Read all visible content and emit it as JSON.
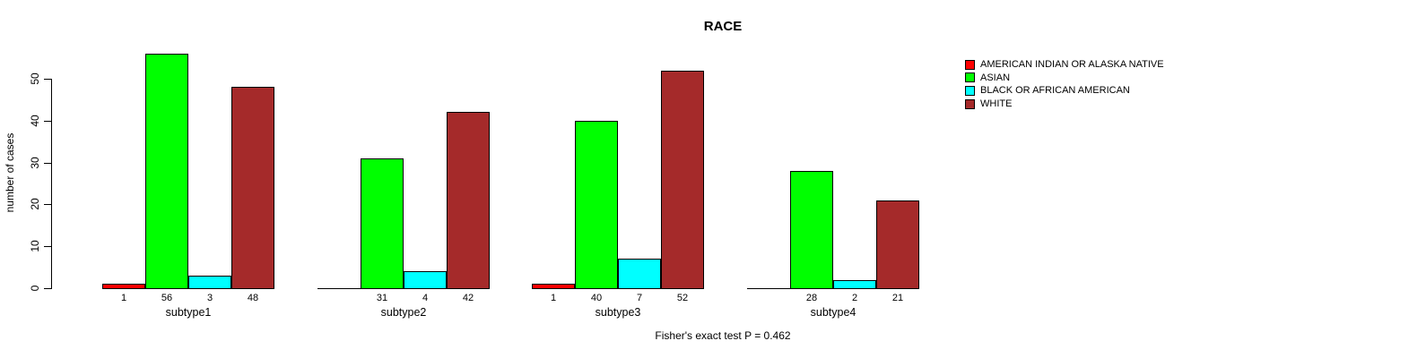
{
  "chart_data": {
    "type": "bar",
    "title": "RACE",
    "ylabel": "number of cases",
    "footer": "Fisher's exact test P = 0.462",
    "categories": [
      "subtype1",
      "subtype2",
      "subtype3",
      "subtype4"
    ],
    "series": [
      {
        "name": "AMERICAN INDIAN OR ALASKA NATIVE",
        "color": "#FF0000",
        "values": [
          1,
          0,
          1,
          0
        ]
      },
      {
        "name": "ASIAN",
        "color": "#00FF00",
        "values": [
          56,
          31,
          40,
          28
        ]
      },
      {
        "name": "BLACK OR AFRICAN AMERICAN",
        "color": "#00FFFF",
        "values": [
          3,
          4,
          7,
          2
        ]
      },
      {
        "name": "WHITE",
        "color": "#A52A2A",
        "values": [
          48,
          42,
          52,
          21
        ]
      }
    ],
    "yticks": [
      0,
      10,
      20,
      30,
      40,
      50
    ],
    "ylim": [
      0,
      56
    ],
    "bar_labels_shown": true,
    "zero_values_unlabeled": true,
    "legend_position": "top-right",
    "grid": false,
    "bar_border_color": "#000000",
    "axis_color": "#000000",
    "background": "#FFFFFF"
  }
}
